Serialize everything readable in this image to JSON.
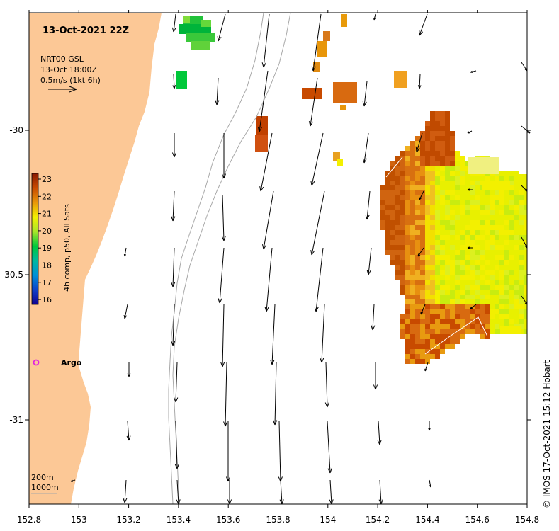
{
  "map": {
    "title": "13-Oct-2021 22Z",
    "product_lines": [
      "NRT00 GSL",
      "13-Oct 18:00Z",
      "0.5m/s (1kt 6h)"
    ],
    "colorbar": {
      "label": "4h comp, p50, All Sats",
      "ticks": [
        "23",
        "22",
        "21",
        "20",
        "19",
        "18",
        "17",
        "16"
      ],
      "colors": [
        "#8b1a00",
        "#c84a00",
        "#e8960a",
        "#f3f000",
        "#a8e62a",
        "#00c83a",
        "#00b8a0",
        "#0090d8",
        "#1040c8",
        "#100090"
      ]
    },
    "x_ticks": [
      "152.8",
      "153",
      "153.2",
      "153.4",
      "153.6",
      "153.8",
      "154",
      "154.2",
      "154.4",
      "154.6",
      "154.8"
    ],
    "y_ticks": [
      "-30",
      "-30.5",
      "-31"
    ],
    "argo_label": "Argo",
    "depth_labels": [
      "200m",
      "1000m"
    ],
    "credit": "© IMOS 17-Oct-2021 15:12 Hobart",
    "colors": {
      "land": "#fcc896",
      "argo": "#e020e0"
    }
  }
}
